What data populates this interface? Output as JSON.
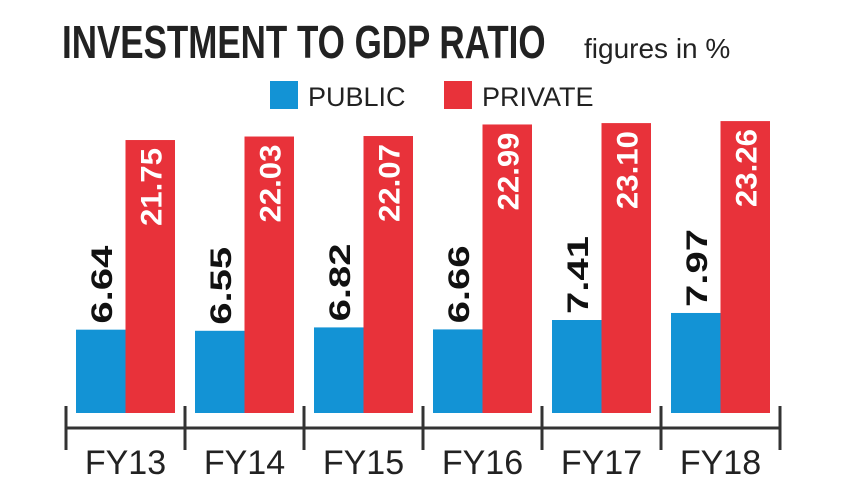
{
  "chart_data": {
    "type": "bar",
    "title": "INVESTMENT TO GDP RATIO",
    "subtitle": "figures in %",
    "categories": [
      "FY13",
      "FY14",
      "FY15",
      "FY16",
      "FY17",
      "FY18"
    ],
    "series": [
      {
        "name": "PUBLIC",
        "color": "#1393d5",
        "values": [
          6.64,
          6.55,
          6.82,
          6.66,
          7.41,
          7.97
        ]
      },
      {
        "name": "PRIVATE",
        "color": "#e8323a",
        "values": [
          21.75,
          22.03,
          22.07,
          22.99,
          23.1,
          23.26
        ]
      }
    ],
    "value_labels": [
      [
        "6.64",
        "6.55",
        "6.82",
        "6.66",
        "7.41",
        "7.97"
      ],
      [
        "21.75",
        "22.03",
        "22.07",
        "22.99",
        "23.10",
        "23.26"
      ]
    ],
    "ylim": [
      0,
      25
    ],
    "grid": false,
    "legend": "top-center"
  }
}
